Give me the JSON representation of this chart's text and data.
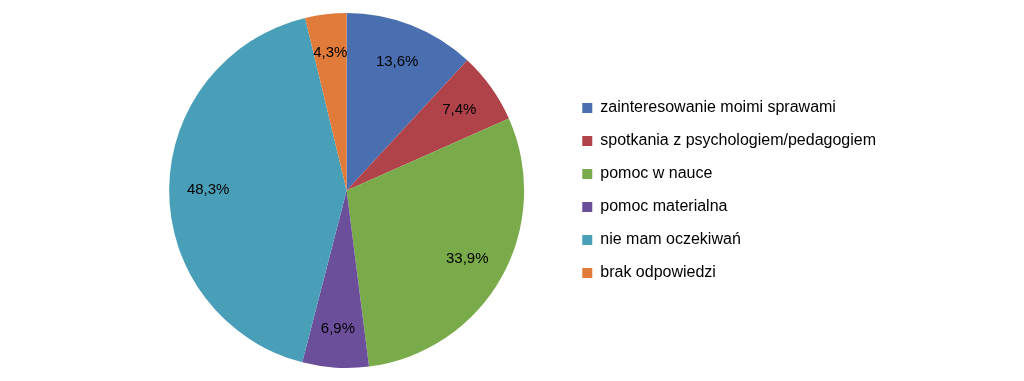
{
  "chart_data": {
    "type": "pie",
    "categories": [
      "zainteresowanie moimi sprawami",
      "spotkania z psychologiem/pedagogiem",
      "pomoc w nauce",
      "pomoc materialna",
      "nie mam oczekiwań",
      "brak odpowiedzi"
    ],
    "values": [
      13.6,
      7.4,
      33.9,
      6.9,
      48.3,
      4.3
    ],
    "value_labels": [
      "13,6%",
      "7,4%",
      "33,9%",
      "6,9%",
      "48,3%",
      "4,3%"
    ],
    "colors": [
      "#4a6fb0",
      "#b0434a",
      "#7aab4a",
      "#6b4f9a",
      "#4a9fb8",
      "#e07b39"
    ],
    "legend": "right"
  }
}
